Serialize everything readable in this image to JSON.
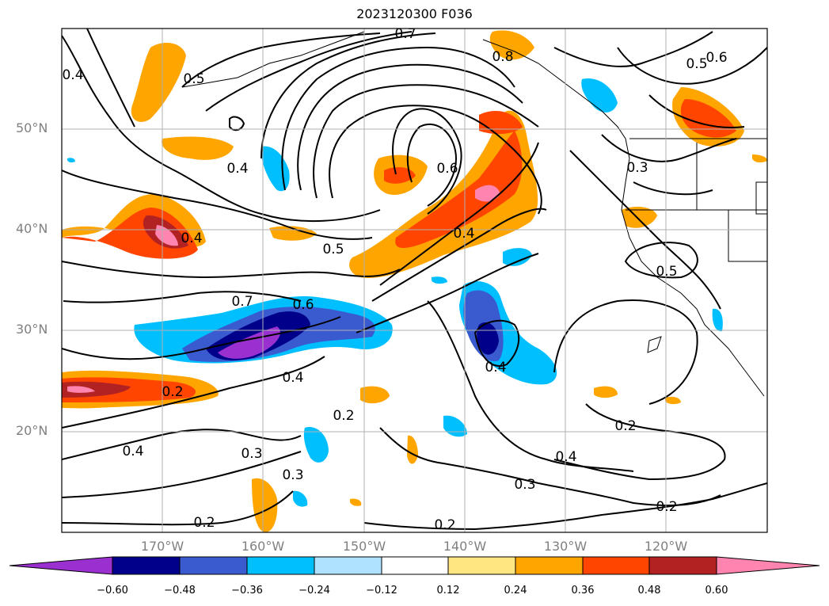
{
  "title": "2023120300 F036",
  "lat_labels": [
    "50°N",
    "40°N",
    "30°N",
    "20°N"
  ],
  "lon_labels": [
    "170°W",
    "160°W",
    "150°W",
    "140°W",
    "130°W",
    "120°W"
  ],
  "contour_labels": [
    "0.7",
    "0.8",
    "0.5",
    "0.4",
    "0.6",
    "0.5",
    "0.3",
    "0.4",
    "0.4",
    "0.6",
    "0.4",
    "0.5",
    "0.7",
    "0.6",
    "0.4",
    "0.2",
    "0.4",
    "0.2",
    "0.3",
    "0.4",
    "0.3",
    "0.2",
    "0.2",
    "0.4",
    "0.3",
    "0.2",
    "0.2",
    "0.5"
  ],
  "colorbar": {
    "ticks": [
      "−0.60",
      "−0.48",
      "−0.36",
      "−0.24",
      "−0.12",
      "0.12",
      "0.24",
      "0.36",
      "0.48",
      "0.60"
    ],
    "colors": [
      "#9b30d0",
      "#00008b",
      "#3a5bd0",
      "#00bfff",
      "#aee2ff",
      "#ffffff",
      "#ffe680",
      "#ffa500",
      "#ff4500",
      "#b22222",
      "#ff85b0"
    ]
  }
}
